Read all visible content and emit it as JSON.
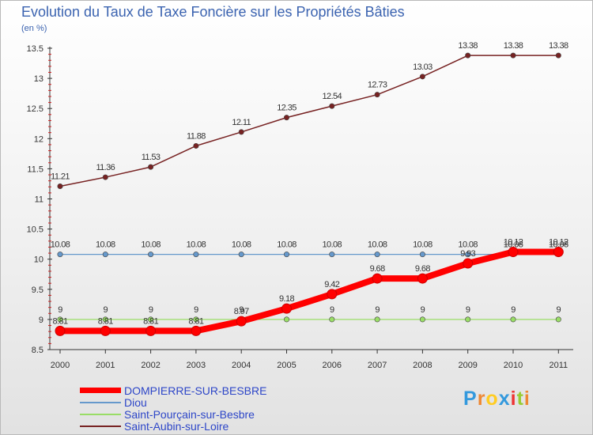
{
  "chart_data": {
    "type": "line",
    "title": "Evolution du Taux de Taxe Foncière sur les Propriétés Bâties",
    "ylabel": "(en %)",
    "xlabel": "",
    "categories": [
      "2000",
      "2001",
      "2002",
      "2003",
      "2004",
      "2005",
      "2006",
      "2007",
      "2008",
      "2009",
      "2010",
      "2011"
    ],
    "ylim": [
      8.5,
      13.5
    ],
    "yticks": [
      "8.5",
      "9",
      "9.5",
      "10",
      "10.5",
      "11",
      "11.5",
      "12",
      "12.5",
      "13",
      "13.5"
    ],
    "grid": false,
    "legend_position": "bottom-left",
    "series": [
      {
        "name": "DOMPIERRE-SUR-BESBRE",
        "color": "#ff0000",
        "values": [
          8.81,
          8.81,
          8.81,
          8.81,
          8.97,
          9.18,
          9.42,
          9.68,
          9.68,
          9.93,
          10.12,
          10.12
        ],
        "labels": [
          "8.81",
          "8.81",
          "8.81",
          "8.81",
          "8.97",
          "9.18",
          "9.42",
          "9.68",
          "9.68",
          "9.93",
          "10.12",
          "10.12"
        ]
      },
      {
        "name": "Diou",
        "color": "#6699cc",
        "values": [
          10.08,
          10.08,
          10.08,
          10.08,
          10.08,
          10.08,
          10.08,
          10.08,
          10.08,
          10.08,
          10.08,
          10.08
        ],
        "labels": [
          "10.08",
          "10.08",
          "10.08",
          "10.08",
          "10.08",
          "10.08",
          "10.08",
          "10.08",
          "10.08",
          "10.08",
          "10.08",
          "10.08"
        ]
      },
      {
        "name": "Saint-Pourçain-sur-Besbre",
        "color": "#99dd66",
        "values": [
          9,
          9,
          9,
          9,
          9,
          9,
          9,
          9,
          9,
          9,
          9,
          9
        ],
        "labels": [
          "9",
          "9",
          "9",
          "9",
          "9",
          "9",
          "9",
          "9",
          "9",
          "9",
          "9",
          "9"
        ]
      },
      {
        "name": "Saint-Aubin-sur-Loire",
        "color": "#772222",
        "values": [
          11.21,
          11.36,
          11.53,
          11.88,
          12.11,
          12.35,
          12.54,
          12.73,
          13.03,
          13.38,
          13.38,
          13.38
        ],
        "labels": [
          "11.21",
          "11.36",
          "11.53",
          "11.88",
          "12.11",
          "12.35",
          "12.54",
          "12.73",
          "13.03",
          "13.38",
          "13.38",
          "13.38"
        ]
      }
    ]
  },
  "brand": {
    "letters": [
      "P",
      "r",
      "o",
      "x",
      "i",
      "t",
      "i"
    ],
    "colors": [
      "#3399dd",
      "#ee8833",
      "#ffcc22",
      "#3399dd",
      "#ee3333",
      "#99cc33",
      "#ee8833"
    ]
  }
}
